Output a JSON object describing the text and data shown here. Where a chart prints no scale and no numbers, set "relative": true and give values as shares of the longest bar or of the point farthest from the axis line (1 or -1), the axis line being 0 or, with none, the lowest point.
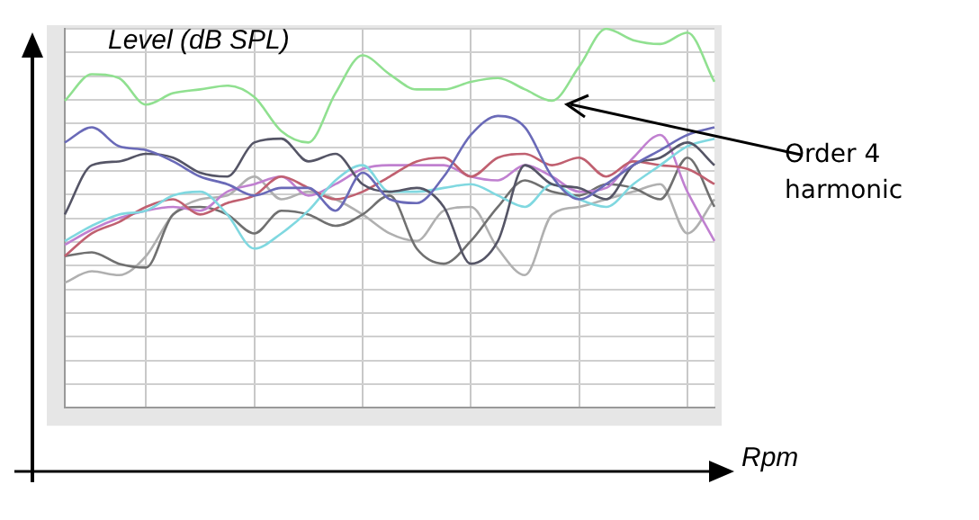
{
  "chart_data": {
    "type": "line",
    "relative": true,
    "ylabel": "Level (dB SPL)",
    "xlabel": "Rpm",
    "grid": true,
    "legend": false,
    "marker": "none",
    "line_style": "solid",
    "annotations": [
      "Order 4 harmonic"
    ],
    "categories": [
      null,
      null,
      null,
      null,
      null,
      null,
      null,
      null,
      null,
      null,
      null,
      null,
      null,
      null,
      null,
      null,
      null,
      null,
      null,
      null,
      null,
      null,
      null,
      null,
      null
    ],
    "series": [
      {
        "color": "#90e090",
        "values": [
          0.81,
          0.88,
          0.87,
          0.8,
          0.83,
          0.84,
          0.85,
          0.82,
          0.73,
          0.7,
          0.83,
          0.93,
          0.88,
          0.84,
          0.84,
          0.86,
          0.87,
          0.84,
          0.81,
          0.9,
          1,
          0.97,
          0.96,
          0.99,
          0.86
        ]
      },
      {
        "color": "#6a6ab8",
        "values": [
          0.7,
          0.74,
          0.69,
          0.68,
          0.65,
          0.61,
          0.59,
          0.56,
          0.58,
          0.58,
          0.52,
          0.62,
          0.55,
          0.54,
          0.61,
          0.72,
          0.77,
          0.74,
          0.61,
          0.55,
          0.59,
          0.64,
          0.68,
          0.72,
          0.74
        ]
      },
      {
        "color": "#555566",
        "values": [
          0.51,
          0.64,
          0.65,
          0.67,
          0.66,
          0.62,
          0.61,
          0.7,
          0.71,
          0.65,
          0.67,
          0.59,
          0.57,
          0.58,
          0.53,
          0.38,
          0.44,
          0.64,
          0.59,
          0.58,
          0.55,
          0.64,
          0.66,
          0.7,
          0.64
        ]
      },
      {
        "color": "#80d8e0",
        "values": [
          0.44,
          0.48,
          0.51,
          0.52,
          0.56,
          0.57,
          0.51,
          0.42,
          0.46,
          0.52,
          0.6,
          0.64,
          0.57,
          0.57,
          0.58,
          0.59,
          0.56,
          0.53,
          0.59,
          0.55,
          0.53,
          0.59,
          0.64,
          0.69,
          0.71
        ]
      },
      {
        "color": "#c06070",
        "values": [
          0.4,
          0.46,
          0.49,
          0.53,
          0.55,
          0.51,
          0.54,
          0.56,
          0.61,
          0.58,
          0.55,
          0.57,
          0.61,
          0.65,
          0.66,
          0.61,
          0.66,
          0.67,
          0.64,
          0.66,
          0.61,
          0.65,
          0.64,
          0.63,
          0.59
        ]
      },
      {
        "color": "#c080d0",
        "values": [
          0.43,
          0.47,
          0.5,
          0.52,
          0.53,
          0.52,
          0.57,
          0.59,
          0.61,
          0.56,
          0.59,
          0.63,
          0.64,
          0.64,
          0.64,
          0.61,
          0.6,
          0.64,
          0.61,
          0.57,
          0.58,
          0.66,
          0.72,
          0.57,
          0.44
        ]
      },
      {
        "color": "#707070",
        "values": [
          0.4,
          0.41,
          0.38,
          0.37,
          0.51,
          0.53,
          0.51,
          0.46,
          0.52,
          0.51,
          0.48,
          0.51,
          0.56,
          0.42,
          0.38,
          0.44,
          0.53,
          0.6,
          0.57,
          0.56,
          0.59,
          0.58,
          0.55,
          0.66,
          0.53
        ]
      },
      {
        "color": "#b0b0b0",
        "values": [
          0.33,
          0.36,
          0.35,
          0.4,
          0.51,
          0.55,
          0.56,
          0.61,
          0.55,
          0.57,
          0.55,
          0.51,
          0.46,
          0.44,
          0.52,
          0.53,
          0.42,
          0.35,
          0.51,
          0.53,
          0.55,
          0.57,
          0.59,
          0.46,
          0.55
        ]
      }
    ]
  }
}
